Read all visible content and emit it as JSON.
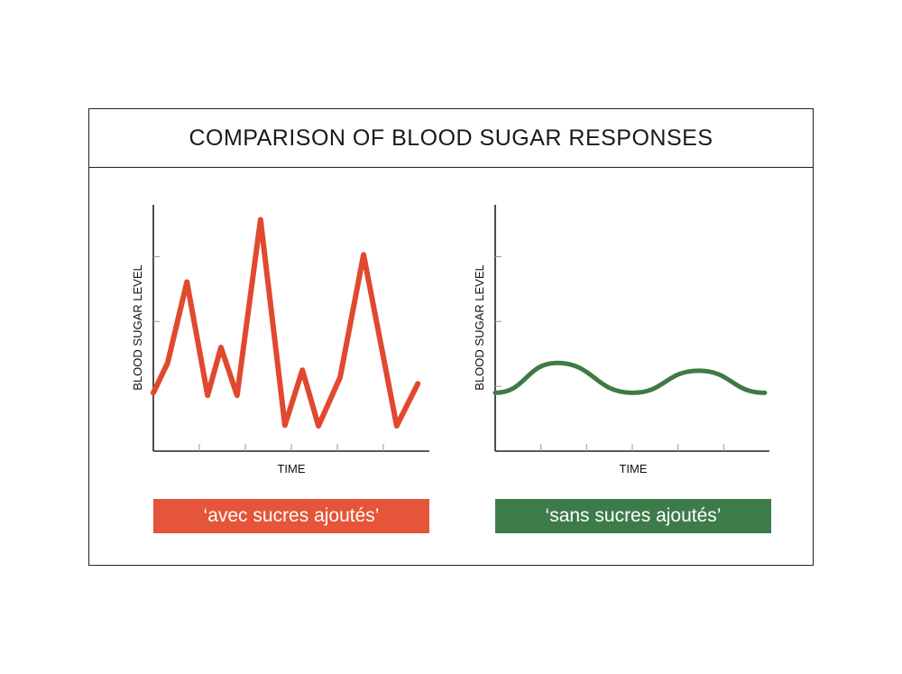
{
  "title": "COMPARISON OF BLOOD SUGAR RESPONSES",
  "chart_data": [
    {
      "type": "line",
      "xlabel": "TIME",
      "ylabel": "BLOOD SUGAR LEVEL",
      "caption": "‘avec sucres ajoutés’",
      "color": "#e0492f",
      "label_bg": "#e4553a",
      "xlim": [
        0,
        6
      ],
      "ylim": [
        0,
        3.8
      ],
      "x_ticks": [
        1,
        2,
        3,
        4,
        5
      ],
      "y_ticks": [
        1,
        2,
        3
      ],
      "tick_labels_shown": false,
      "smooth": false,
      "x": [
        0,
        0.31,
        0.73,
        1.18,
        1.47,
        1.82,
        2.33,
        2.86,
        3.24,
        3.59,
        4.06,
        4.57,
        5.29,
        5.75
      ],
      "y": [
        0.9,
        1.36,
        2.61,
        0.86,
        1.6,
        0.86,
        3.57,
        0.4,
        1.25,
        0.39,
        1.14,
        3.03,
        0.39,
        1.04
      ]
    },
    {
      "type": "line",
      "xlabel": "TIME",
      "ylabel": "BLOOD SUGAR LEVEL",
      "caption": "‘sans sucres ajoutés’",
      "color": "#3f7a45",
      "label_bg": "#3e7b4a",
      "xlim": [
        0,
        6
      ],
      "ylim": [
        0,
        3.8
      ],
      "x_ticks": [
        1,
        2,
        3,
        4,
        5
      ],
      "y_ticks": [
        1,
        2,
        3
      ],
      "tick_labels_shown": false,
      "smooth": true,
      "x": [
        0,
        1.35,
        3.0,
        4.45,
        5.9
      ],
      "y": [
        0.9,
        1.36,
        0.9,
        1.24,
        0.9
      ]
    }
  ]
}
